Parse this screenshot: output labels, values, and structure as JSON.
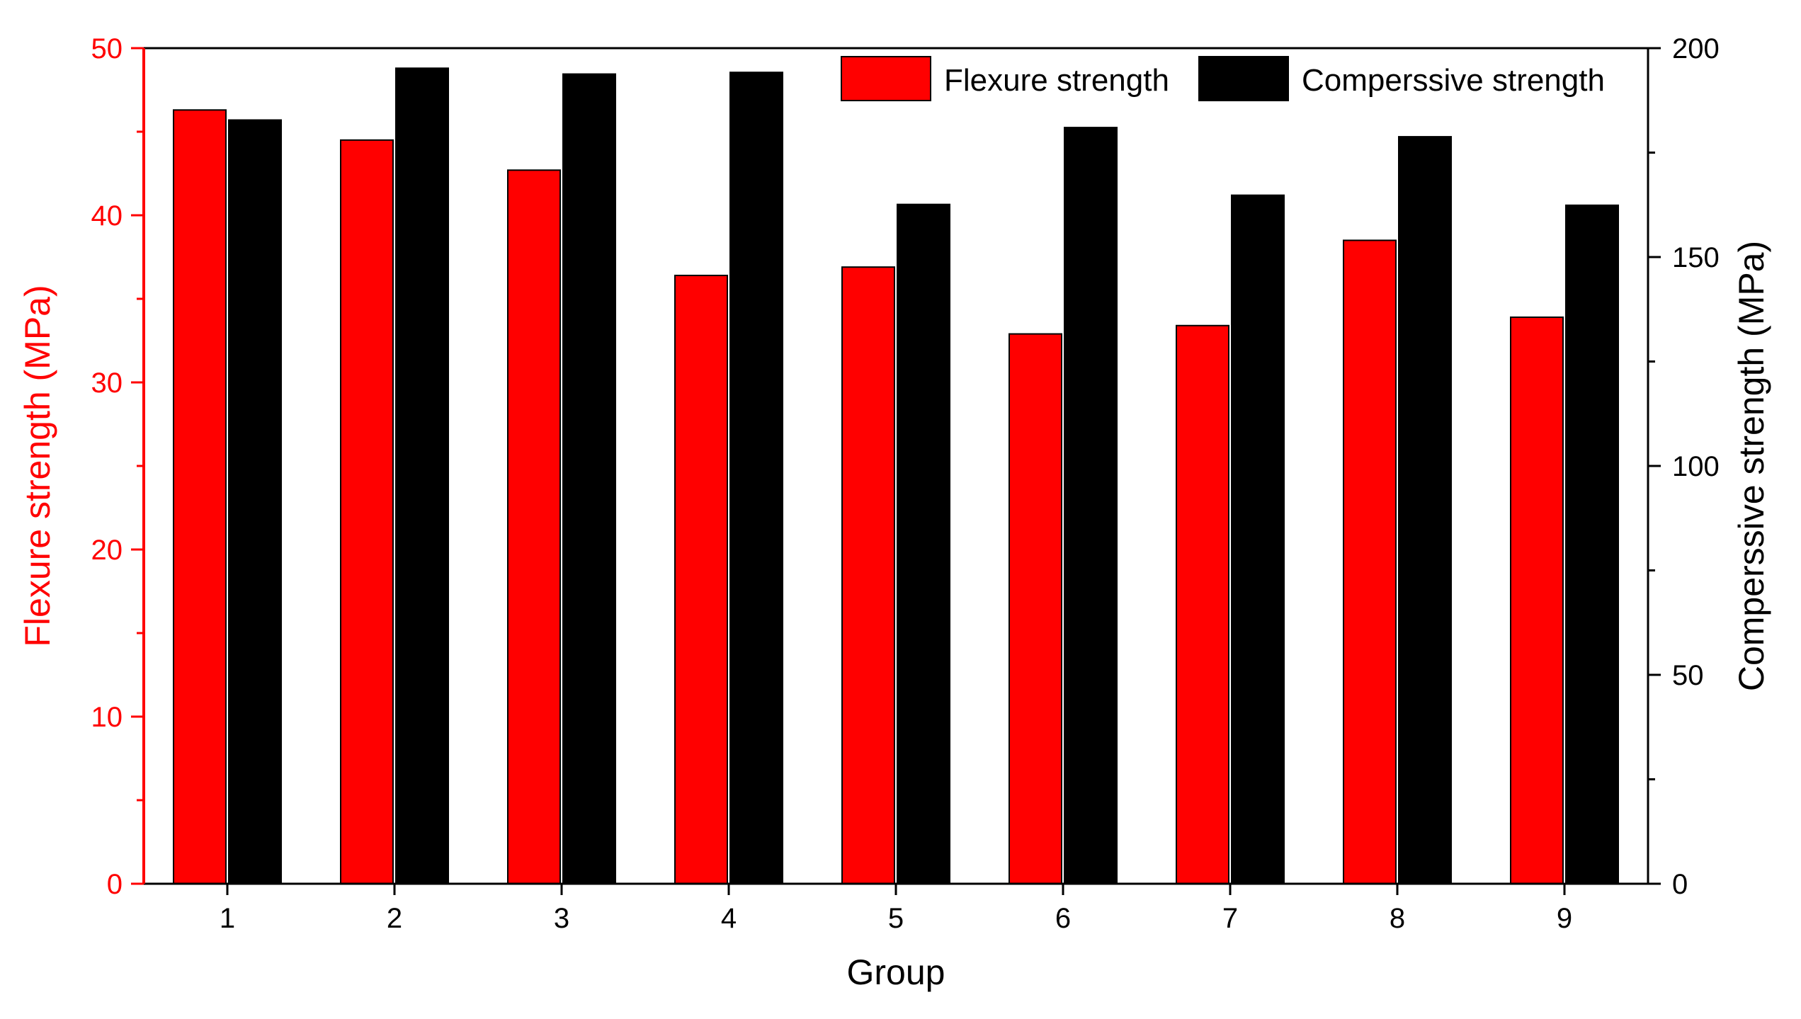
{
  "chart_data": {
    "type": "bar",
    "categories": [
      "1",
      "2",
      "3",
      "4",
      "5",
      "6",
      "7",
      "8",
      "9"
    ],
    "series": [
      {
        "name": "Flexure strength",
        "axis": "left",
        "color": "#ff0000",
        "values": [
          46.3,
          44.5,
          42.7,
          36.4,
          36.9,
          32.9,
          33.4,
          38.5,
          33.9
        ]
      },
      {
        "name": "Comperssive strength",
        "axis": "right",
        "color": "#000000",
        "values": [
          182.8,
          195.2,
          193.8,
          194.2,
          162.6,
          181.0,
          164.8,
          178.8,
          162.4
        ]
      }
    ],
    "xlabel": "Group",
    "ylabel_left": "Flexure strength (MPa)",
    "ylabel_right": "Comperssive strength (MPa)",
    "ylim_left": [
      0,
      50
    ],
    "ylim_right": [
      0,
      200
    ],
    "yticks_left": [
      0,
      10,
      20,
      30,
      40,
      50
    ],
    "yticks_right": [
      0,
      50,
      100,
      150,
      200
    ],
    "left_axis_color": "#ff0000",
    "right_axis_color": "#000000",
    "grid": false,
    "legend_position": "top-right"
  }
}
